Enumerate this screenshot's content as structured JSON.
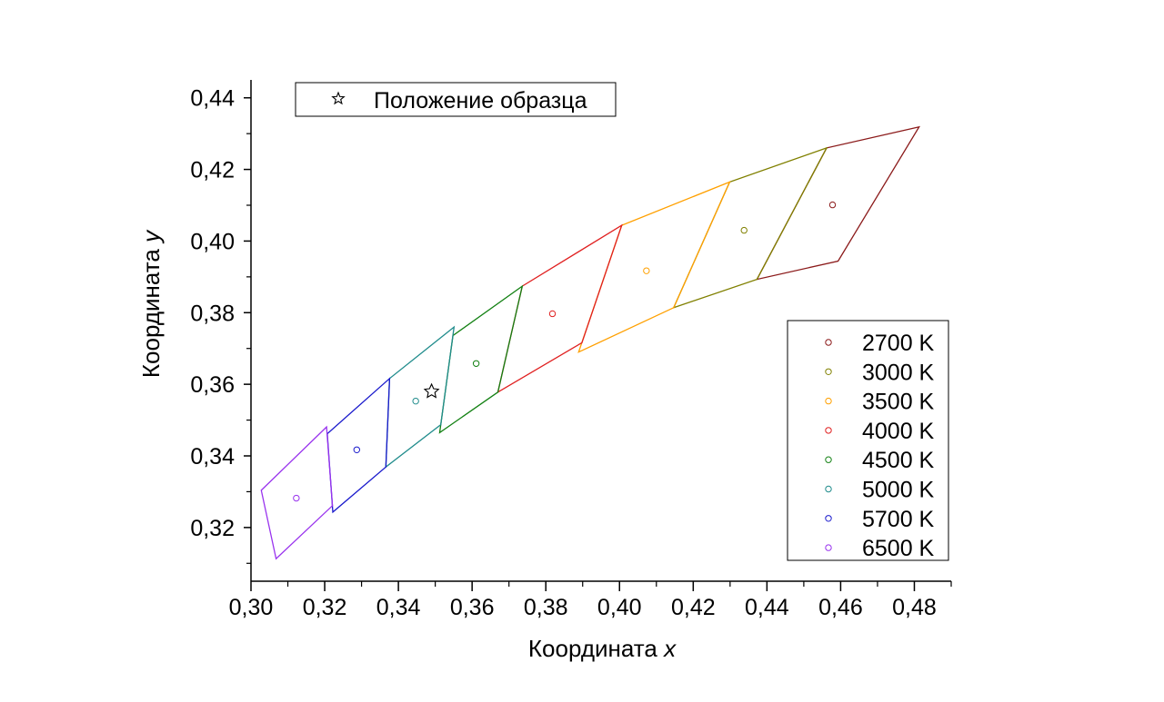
{
  "chart_data": {
    "type": "scatter",
    "xlabel": "Координата",
    "xlabel_var": "x",
    "ylabel": "Координата",
    "ylabel_var": "y",
    "xlim": [
      0.3,
      0.49
    ],
    "ylim": [
      0.305,
      0.445
    ],
    "x_ticks": [
      0.3,
      0.32,
      0.34,
      0.36,
      0.38,
      0.4,
      0.42,
      0.44,
      0.46,
      0.48
    ],
    "x_tick_labels": [
      "0,30",
      "0,32",
      "0,34",
      "0,36",
      "0,38",
      "0,40",
      "0,42",
      "0,44",
      "0,46",
      "0,48"
    ],
    "y_ticks": [
      0.32,
      0.34,
      0.36,
      0.38,
      0.4,
      0.42,
      0.44
    ],
    "y_tick_labels": [
      "0,32",
      "0,34",
      "0,36",
      "0,38",
      "0,40",
      "0,42",
      "0,44"
    ],
    "grid": false,
    "series": [
      {
        "name": "2700 K",
        "color": "#8b1a1a",
        "center": [
          0.4578,
          0.4101
        ],
        "quad": [
          [
            0.4813,
            0.4319
          ],
          [
            0.4562,
            0.426
          ],
          [
            0.4373,
            0.3893
          ],
          [
            0.4593,
            0.3944
          ]
        ]
      },
      {
        "name": "3000 K",
        "color": "#808000",
        "center": [
          0.4338,
          0.403
        ],
        "quad": [
          [
            0.4562,
            0.426
          ],
          [
            0.4299,
            0.4165
          ],
          [
            0.4147,
            0.3814
          ],
          [
            0.4373,
            0.3893
          ]
        ]
      },
      {
        "name": "3500 K",
        "color": "#ffa000",
        "center": [
          0.4073,
          0.3917
        ],
        "quad": [
          [
            0.4299,
            0.4165
          ],
          [
            0.4006,
            0.4044
          ],
          [
            0.3889,
            0.369
          ],
          [
            0.4147,
            0.3814
          ]
        ]
      },
      {
        "name": "4000 K",
        "color": "#e02020",
        "center": [
          0.3818,
          0.3797
        ],
        "quad": [
          [
            0.4006,
            0.4044
          ],
          [
            0.3736,
            0.3874
          ],
          [
            0.367,
            0.3578
          ],
          [
            0.3898,
            0.3716
          ]
        ]
      },
      {
        "name": "4500 K",
        "color": "#128012",
        "center": [
          0.3611,
          0.3658
        ],
        "quad": [
          [
            0.3736,
            0.3874
          ],
          [
            0.3548,
            0.3736
          ],
          [
            0.3512,
            0.3465
          ],
          [
            0.367,
            0.3578
          ]
        ]
      },
      {
        "name": "5000 K",
        "color": "#208c8c",
        "center": [
          0.3447,
          0.3553
        ],
        "quad": [
          [
            0.3551,
            0.376
          ],
          [
            0.3376,
            0.3616
          ],
          [
            0.3366,
            0.3369
          ],
          [
            0.3515,
            0.3487
          ]
        ]
      },
      {
        "name": "5700 K",
        "color": "#1a1acc",
        "center": [
          0.3287,
          0.3417
        ],
        "quad": [
          [
            0.3376,
            0.3616
          ],
          [
            0.3207,
            0.3462
          ],
          [
            0.3222,
            0.3243
          ],
          [
            0.3366,
            0.3369
          ]
        ]
      },
      {
        "name": "6500 K",
        "color": "#9933ee",
        "center": [
          0.3123,
          0.3282
        ],
        "quad": [
          [
            0.3205,
            0.3481
          ],
          [
            0.3028,
            0.3304
          ],
          [
            0.3068,
            0.3113
          ],
          [
            0.3221,
            0.3261
          ]
        ]
      }
    ],
    "sample": {
      "label": "Положение образца",
      "x": 0.349,
      "y": 0.358
    },
    "legend_position": "right",
    "sample_legend_position": "top-left"
  }
}
